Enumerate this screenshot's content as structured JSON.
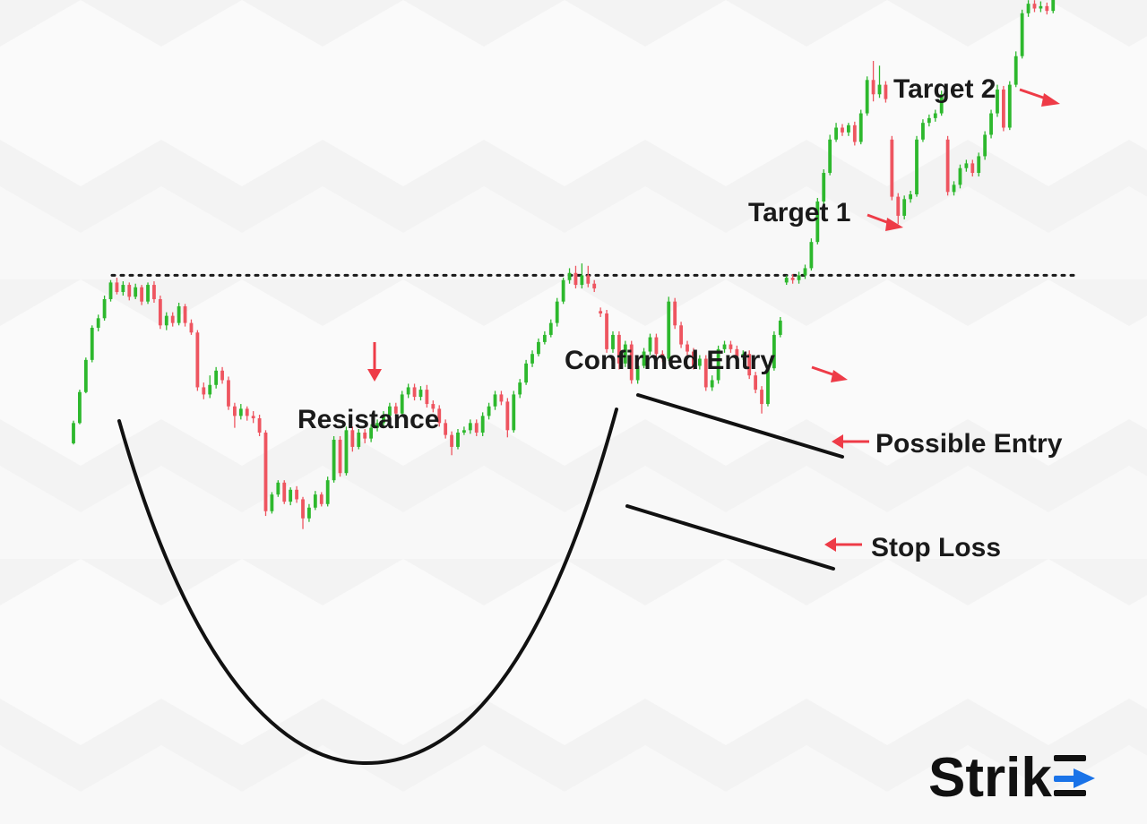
{
  "chart_data": {
    "type": "candlestick",
    "pattern": "cup and handle",
    "grid": false,
    "legend": "none",
    "colors": {
      "up": "#2db82d",
      "down": "#ee5560",
      "arrow": "#ee3b47",
      "line": "#111111",
      "brand_accent": "#1a73e8"
    },
    "candles": [
      [
        -1.5,
        0.2,
        -1.6,
        0.4
      ],
      [
        0.2,
        2.8,
        0.1,
        3.0
      ],
      [
        2.8,
        5.5,
        2.7,
        5.7
      ],
      [
        5.5,
        8.2,
        5.3,
        8.4
      ],
      [
        8.2,
        9.0,
        7.9,
        9.3
      ],
      [
        9.0,
        10.6,
        8.8,
        10.9
      ],
      [
        10.6,
        12.0,
        10.4,
        12.2
      ],
      [
        12.0,
        11.2,
        11.0,
        12.4
      ],
      [
        11.2,
        11.8,
        10.9,
        12.1
      ],
      [
        11.8,
        10.8,
        10.5,
        12.0
      ],
      [
        10.8,
        11.6,
        10.6,
        11.9
      ],
      [
        11.6,
        10.4,
        10.1,
        11.8
      ],
      [
        10.4,
        11.8,
        10.2,
        12.0
      ],
      [
        11.8,
        10.6,
        10.3,
        12.1
      ],
      [
        10.6,
        8.4,
        8.1,
        10.9
      ],
      [
        8.4,
        9.2,
        8.0,
        9.5
      ],
      [
        9.2,
        8.6,
        8.3,
        9.5
      ],
      [
        8.6,
        10.0,
        8.4,
        10.3
      ],
      [
        10.0,
        8.6,
        8.3,
        10.2
      ],
      [
        8.6,
        7.8,
        7.6,
        8.9
      ],
      [
        7.8,
        3.2,
        2.9,
        8.0
      ],
      [
        3.2,
        2.6,
        2.2,
        3.6
      ],
      [
        2.6,
        3.4,
        2.3,
        4.2
      ],
      [
        3.4,
        4.6,
        3.1,
        4.9
      ],
      [
        4.6,
        3.8,
        3.5,
        4.9
      ],
      [
        3.8,
        1.6,
        1.3,
        4.1
      ],
      [
        1.6,
        0.8,
        -0.2,
        1.9
      ],
      [
        0.8,
        1.4,
        0.5,
        1.8
      ],
      [
        1.4,
        0.8,
        0.4,
        1.6
      ],
      [
        0.8,
        0.6,
        0.2,
        1.2
      ],
      [
        0.6,
        -0.6,
        -0.9,
        0.9
      ],
      [
        -0.6,
        -7.2,
        -7.6,
        -0.4
      ],
      [
        -7.2,
        -5.8,
        -7.4,
        -5.6
      ],
      [
        -5.8,
        -4.8,
        -6.0,
        -4.6
      ],
      [
        -4.8,
        -6.4,
        -6.6,
        -4.6
      ],
      [
        -6.4,
        -5.4,
        -6.7,
        -5.2
      ],
      [
        -5.4,
        -6.2,
        -6.5,
        -5.1
      ],
      [
        -6.2,
        -7.8,
        -8.7,
        -6.0
      ],
      [
        -7.8,
        -6.9,
        -8.1,
        -6.6
      ],
      [
        -6.9,
        -5.8,
        -7.1,
        -5.5
      ],
      [
        -5.8,
        -6.6,
        -6.8,
        -5.6
      ],
      [
        -6.6,
        -4.6,
        -6.8,
        -4.3
      ],
      [
        -4.6,
        -1.2,
        -4.8,
        -0.9
      ],
      [
        -1.2,
        -4.0,
        -4.3,
        -0.9
      ],
      [
        -4.0,
        -0.4,
        -4.2,
        -0.1
      ],
      [
        -0.4,
        -1.8,
        -2.2,
        -0.1
      ],
      [
        -1.8,
        -0.6,
        -2.0,
        -0.3
      ],
      [
        -0.6,
        -1.1,
        -1.5,
        -0.3
      ],
      [
        -1.1,
        -0.2,
        -1.4,
        0.1
      ],
      [
        -0.2,
        0.2,
        -0.5,
        0.5
      ],
      [
        0.2,
        0.8,
        -0.2,
        1.2
      ],
      [
        0.8,
        1.6,
        0.5,
        1.9
      ],
      [
        1.6,
        1.0,
        0.8,
        1.9
      ],
      [
        1.0,
        2.6,
        0.8,
        2.9
      ],
      [
        2.6,
        3.2,
        2.3,
        3.5
      ],
      [
        3.2,
        2.4,
        2.1,
        3.5
      ],
      [
        2.4,
        3.0,
        2.1,
        3.3
      ],
      [
        3.0,
        1.8,
        1.5,
        3.4
      ],
      [
        1.8,
        1.4,
        1.1,
        2.1
      ],
      [
        1.4,
        0.2,
        -0.1,
        1.7
      ],
      [
        0.2,
        -0.8,
        -1.1,
        0.5
      ],
      [
        -0.8,
        -1.8,
        -2.5,
        -0.5
      ],
      [
        -1.8,
        -0.6,
        -2.0,
        -0.3
      ],
      [
        -0.6,
        -0.4,
        -0.8,
        -0.1
      ],
      [
        -0.4,
        0.2,
        -0.7,
        0.5
      ],
      [
        0.2,
        -0.6,
        -0.9,
        0.5
      ],
      [
        -0.6,
        0.8,
        -0.9,
        1.1
      ],
      [
        0.8,
        1.6,
        0.5,
        1.9
      ],
      [
        1.6,
        2.6,
        1.3,
        2.9
      ],
      [
        2.6,
        2.0,
        1.7,
        2.9
      ],
      [
        2.0,
        -0.4,
        -1.0,
        2.3
      ],
      [
        -0.4,
        2.6,
        -0.6,
        2.9
      ],
      [
        2.6,
        3.6,
        2.3,
        3.9
      ],
      [
        3.6,
        5.2,
        3.4,
        5.5
      ],
      [
        5.2,
        6.0,
        4.9,
        6.3
      ],
      [
        6.0,
        7.0,
        5.8,
        7.3
      ],
      [
        7.0,
        7.6,
        6.8,
        7.9
      ],
      [
        7.6,
        8.6,
        7.4,
        8.9
      ],
      [
        8.6,
        10.4,
        8.3,
        10.7
      ],
      [
        10.4,
        12.2,
        10.2,
        12.4
      ],
      [
        12.2,
        12.8,
        11.9,
        13.2
      ],
      [
        12.8,
        11.8,
        11.5,
        13.4
      ],
      [
        11.8,
        12.6,
        11.5,
        13.6
      ],
      [
        12.6,
        11.9,
        11.6,
        13.4
      ],
      [
        11.9,
        11.5,
        11.2,
        12.2
      ],
      [
        9.6,
        9.4,
        9.1,
        9.9
      ],
      [
        9.4,
        6.4,
        6.1,
        9.7
      ],
      [
        6.4,
        7.6,
        6.1,
        7.9
      ],
      [
        7.6,
        5.2,
        4.7,
        7.9
      ],
      [
        5.2,
        6.8,
        4.9,
        7.1
      ],
      [
        6.8,
        3.8,
        3.5,
        7.1
      ],
      [
        3.8,
        5.0,
        3.5,
        5.3
      ],
      [
        5.0,
        6.2,
        4.8,
        6.5
      ],
      [
        6.2,
        7.4,
        5.9,
        7.7
      ],
      [
        7.4,
        6.0,
        5.7,
        7.7
      ],
      [
        6.0,
        5.6,
        5.3,
        6.3
      ],
      [
        5.6,
        10.4,
        5.4,
        10.8
      ],
      [
        10.4,
        8.4,
        8.1,
        10.7
      ],
      [
        8.4,
        6.8,
        6.5,
        8.7
      ],
      [
        6.8,
        6.2,
        5.9,
        7.1
      ],
      [
        6.2,
        5.0,
        4.7,
        6.5
      ],
      [
        5.0,
        5.6,
        4.7,
        5.9
      ],
      [
        5.6,
        3.2,
        2.9,
        5.9
      ],
      [
        3.2,
        3.8,
        2.9,
        4.2
      ],
      [
        3.8,
        6.4,
        3.5,
        6.7
      ],
      [
        6.4,
        6.8,
        6.1,
        7.1
      ],
      [
        6.8,
        6.4,
        6.1,
        7.1
      ],
      [
        6.4,
        5.8,
        5.5,
        6.7
      ],
      [
        5.8,
        6.0,
        5.5,
        6.3
      ],
      [
        6.0,
        4.2,
        3.9,
        6.3
      ],
      [
        4.2,
        3.0,
        2.7,
        4.5
      ],
      [
        3.0,
        1.8,
        1.0,
        3.3
      ],
      [
        1.8,
        4.8,
        1.6,
        5.1
      ],
      [
        4.8,
        7.6,
        4.6,
        7.9
      ],
      [
        7.6,
        8.8,
        7.4,
        9.1
      ],
      [
        12.0,
        12.4,
        11.8,
        12.6
      ],
      [
        12.4,
        12.2,
        11.9,
        12.7
      ],
      [
        12.2,
        12.6,
        11.9,
        12.9
      ],
      [
        12.6,
        13.2,
        12.3,
        13.5
      ],
      [
        13.2,
        15.4,
        13.0,
        15.7
      ],
      [
        15.4,
        18.8,
        15.2,
        19.1
      ],
      [
        18.8,
        21.2,
        18.6,
        21.5
      ],
      [
        21.2,
        24.0,
        21.0,
        24.4
      ],
      [
        24.0,
        25.0,
        23.8,
        25.4
      ],
      [
        25.0,
        24.6,
        24.3,
        25.3
      ],
      [
        24.6,
        25.2,
        24.3,
        25.4
      ],
      [
        25.2,
        23.8,
        23.5,
        25.5
      ],
      [
        23.8,
        26.2,
        23.6,
        26.5
      ],
      [
        26.2,
        29.0,
        26.0,
        29.3
      ],
      [
        29.0,
        27.8,
        27.2,
        30.6
      ],
      [
        27.8,
        28.6,
        27.5,
        30.2
      ],
      [
        28.6,
        27.4,
        27.1,
        28.9
      ],
      [
        24.0,
        19.2,
        18.9,
        24.3
      ],
      [
        19.2,
        17.6,
        16.9,
        19.5
      ],
      [
        17.6,
        19.0,
        17.3,
        19.3
      ],
      [
        19.0,
        19.4,
        18.7,
        19.7
      ],
      [
        19.4,
        24.0,
        19.2,
        24.3
      ],
      [
        24.0,
        25.4,
        23.8,
        25.7
      ],
      [
        25.4,
        25.8,
        25.1,
        26.1
      ],
      [
        25.8,
        26.2,
        25.5,
        26.5
      ],
      [
        26.2,
        27.8,
        26.0,
        28.1
      ],
      [
        24.0,
        19.6,
        19.3,
        24.3
      ],
      [
        19.6,
        20.2,
        19.3,
        20.5
      ],
      [
        20.2,
        21.6,
        19.9,
        21.9
      ],
      [
        21.6,
        22.0,
        21.3,
        22.3
      ],
      [
        22.0,
        21.2,
        20.9,
        22.3
      ],
      [
        21.2,
        22.6,
        20.9,
        22.9
      ],
      [
        22.6,
        24.4,
        22.3,
        24.7
      ],
      [
        24.4,
        26.2,
        24.1,
        26.5
      ],
      [
        26.2,
        28.2,
        25.9,
        28.6
      ],
      [
        28.2,
        25.0,
        24.7,
        28.5
      ],
      [
        25.0,
        28.6,
        24.8,
        28.9
      ],
      [
        28.6,
        31.0,
        28.4,
        31.4
      ],
      [
        31.0,
        34.6,
        30.8,
        34.9
      ],
      [
        34.6,
        35.4,
        34.3,
        35.7
      ],
      [
        35.4,
        35.0,
        34.7,
        35.7
      ],
      [
        35.0,
        35.2,
        34.7,
        35.6
      ],
      [
        35.2,
        34.8,
        34.5,
        35.5
      ],
      [
        34.8,
        36.0,
        34.6,
        36.3
      ],
      [
        36.0,
        37.4,
        35.8,
        37.7
      ],
      [
        37.4,
        41.2,
        37.2,
        41.5
      ],
      [
        41.2,
        44.4,
        41.0,
        45.2
      ]
    ],
    "resistance_level": 12.6,
    "annotations": {
      "resistance": "Resistance",
      "confirmed_entry": "Confirmed Entry",
      "possible_entry": "Possible Entry",
      "stop_loss": "Stop Loss",
      "target_1": "Target 1",
      "target_2": "Target 2"
    }
  },
  "brand": {
    "logo_text": "Strike"
  }
}
